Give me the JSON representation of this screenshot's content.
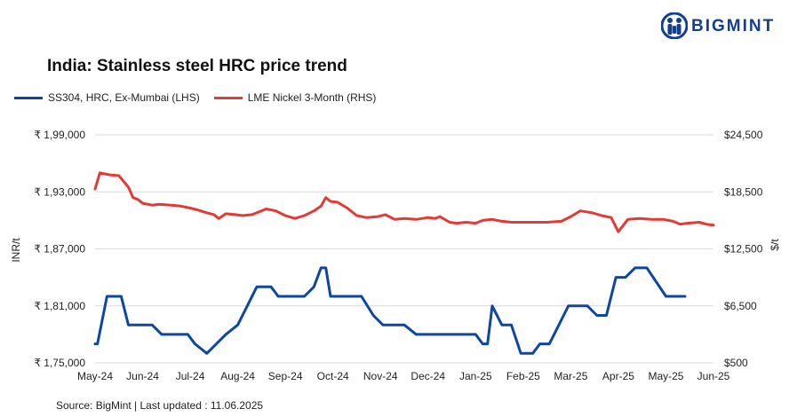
{
  "logo": {
    "text": "BIGMINT",
    "brand_color": "#123f8f",
    "icon": "bigmint-people-icon"
  },
  "footer": {
    "source": "Source: BigMint | Last updated : 11.06.2025"
  },
  "chart_data": {
    "type": "line",
    "title": "India: Stainless steel HRC price trend",
    "ylabel": "INR/t",
    "y2label": "$/t",
    "ylim": [
      175000,
      199000
    ],
    "y2lim": [
      500,
      24500
    ],
    "y_ticks": [
      "₹ 1,75,000",
      "₹ 1,81,000",
      "₹ 1,87,000",
      "₹ 1,93,000",
      "₹ 1,99,000"
    ],
    "y2_ticks": [
      "$500",
      "$6,500",
      "$12,500",
      "$18,500",
      "$24,500"
    ],
    "x_ticks": [
      "May-24",
      "Jun-24",
      "Jul-24",
      "Aug-24",
      "Sep-24",
      "Oct-24",
      "Nov-24",
      "Dec-24",
      "Jan-25",
      "Feb-25",
      "Mar-25",
      "Apr-25",
      "May-25",
      "Jun-25"
    ],
    "legend_position": "top-left",
    "grid": true,
    "series": [
      {
        "name": "SS304, HRC, Ex-Mumbai (LHS)",
        "color": "#0d47a1",
        "axis": "left",
        "points": [
          [
            0,
            177000
          ],
          [
            0.05,
            177000
          ],
          [
            0.25,
            182000
          ],
          [
            0.55,
            182000
          ],
          [
            0.7,
            179000
          ],
          [
            1.2,
            179000
          ],
          [
            1.4,
            178000
          ],
          [
            1.95,
            178000
          ],
          [
            2.1,
            177000
          ],
          [
            2.35,
            176000
          ],
          [
            2.55,
            177000
          ],
          [
            2.75,
            178000
          ],
          [
            3.0,
            179000
          ],
          [
            3.2,
            181000
          ],
          [
            3.4,
            183000
          ],
          [
            3.7,
            183000
          ],
          [
            3.85,
            182000
          ],
          [
            4.4,
            182000
          ],
          [
            4.6,
            183000
          ],
          [
            4.75,
            185000
          ],
          [
            4.85,
            185000
          ],
          [
            4.95,
            182000
          ],
          [
            5.6,
            182000
          ],
          [
            5.85,
            180000
          ],
          [
            6.05,
            179000
          ],
          [
            6.5,
            179000
          ],
          [
            6.75,
            178000
          ],
          [
            7.5,
            178000
          ],
          [
            8.0,
            178000
          ],
          [
            8.15,
            177000
          ],
          [
            8.25,
            177000
          ],
          [
            8.35,
            181000
          ],
          [
            8.55,
            179000
          ],
          [
            8.75,
            179000
          ],
          [
            8.95,
            176000
          ],
          [
            9.2,
            176000
          ],
          [
            9.35,
            177000
          ],
          [
            9.55,
            177000
          ],
          [
            9.75,
            179000
          ],
          [
            9.95,
            181000
          ],
          [
            10.35,
            181000
          ],
          [
            10.55,
            180000
          ],
          [
            10.75,
            180000
          ],
          [
            10.95,
            184000
          ],
          [
            11.15,
            184000
          ],
          [
            11.35,
            185000
          ],
          [
            11.6,
            185000
          ],
          [
            12.0,
            182000
          ],
          [
            12.4,
            182000
          ]
        ]
      },
      {
        "name": "LME Nickel 3-Month (RHS)",
        "color": "#e53935",
        "axis": "right",
        "points": [
          [
            0,
            18800
          ],
          [
            0.1,
            20500
          ],
          [
            0.3,
            20300
          ],
          [
            0.5,
            20200
          ],
          [
            0.7,
            19000
          ],
          [
            0.8,
            17900
          ],
          [
            0.9,
            17700
          ],
          [
            1.0,
            17300
          ],
          [
            1.2,
            17100
          ],
          [
            1.35,
            17200
          ],
          [
            1.6,
            17100
          ],
          [
            1.8,
            17000
          ],
          [
            2.0,
            16800
          ],
          [
            2.15,
            16600
          ],
          [
            2.35,
            16300
          ],
          [
            2.5,
            16100
          ],
          [
            2.6,
            15700
          ],
          [
            2.75,
            16200
          ],
          [
            2.95,
            16100
          ],
          [
            3.1,
            16000
          ],
          [
            3.3,
            16100
          ],
          [
            3.45,
            16400
          ],
          [
            3.6,
            16700
          ],
          [
            3.8,
            16500
          ],
          [
            4.0,
            16000
          ],
          [
            4.2,
            15700
          ],
          [
            4.4,
            16000
          ],
          [
            4.6,
            16500
          ],
          [
            4.75,
            17000
          ],
          [
            4.85,
            17900
          ],
          [
            4.95,
            17500
          ],
          [
            5.1,
            17400
          ],
          [
            5.3,
            16800
          ],
          [
            5.5,
            16000
          ],
          [
            5.7,
            15800
          ],
          [
            5.95,
            15900
          ],
          [
            6.1,
            16100
          ],
          [
            6.3,
            15600
          ],
          [
            6.5,
            15700
          ],
          [
            6.75,
            15600
          ],
          [
            7.0,
            15800
          ],
          [
            7.15,
            15700
          ],
          [
            7.25,
            15900
          ],
          [
            7.45,
            15300
          ],
          [
            7.6,
            15200
          ],
          [
            7.8,
            15300
          ],
          [
            8.0,
            15200
          ],
          [
            8.15,
            15500
          ],
          [
            8.35,
            15600
          ],
          [
            8.55,
            15400
          ],
          [
            8.75,
            15300
          ],
          [
            9.0,
            15300
          ],
          [
            9.5,
            15300
          ],
          [
            9.8,
            15400
          ],
          [
            10.0,
            15900
          ],
          [
            10.2,
            16500
          ],
          [
            10.45,
            16300
          ],
          [
            10.65,
            16000
          ],
          [
            10.85,
            15800
          ],
          [
            11.0,
            14300
          ],
          [
            11.2,
            15600
          ],
          [
            11.45,
            15700
          ],
          [
            11.7,
            15600
          ],
          [
            11.95,
            15600
          ],
          [
            12.15,
            15400
          ],
          [
            12.3,
            15100
          ],
          [
            12.45,
            15200
          ],
          [
            12.7,
            15300
          ],
          [
            12.85,
            15100
          ],
          [
            13.0,
            15000
          ]
        ]
      }
    ]
  }
}
